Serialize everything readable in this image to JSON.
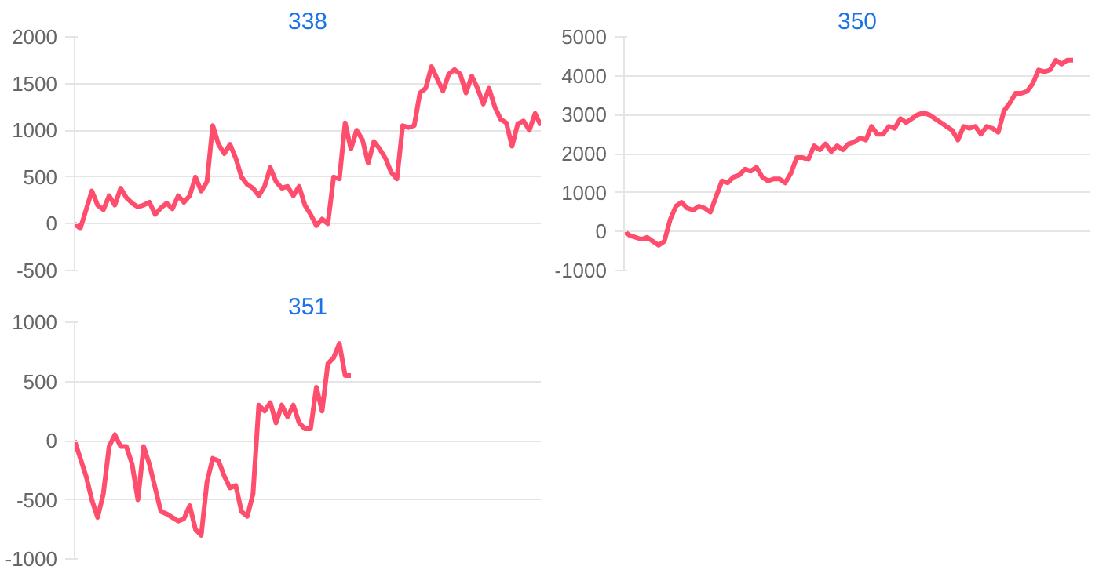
{
  "chart_data": [
    {
      "type": "line",
      "title": "338",
      "categories": [
        null,
        null,
        null,
        null,
        null,
        null,
        null,
        null,
        null,
        null,
        null,
        null,
        null,
        null,
        null,
        null,
        null,
        null,
        null,
        null,
        null,
        null,
        null,
        null,
        null,
        null,
        null,
        null,
        null,
        null,
        null,
        null,
        null,
        null,
        null,
        null,
        null,
        null,
        null,
        null,
        null,
        null,
        null,
        null,
        null,
        null,
        null,
        null,
        null,
        null,
        null,
        null,
        null,
        null,
        null,
        null,
        null,
        null,
        null,
        null,
        null,
        null,
        null,
        null,
        null,
        null,
        null,
        null,
        null,
        null,
        null,
        null,
        null,
        null,
        null,
        null,
        null,
        null,
        null,
        null,
        null,
        null
      ],
      "series": [
        {
          "color": "#ff4d6d",
          "values": [
            0,
            -50,
            150,
            350,
            200,
            150,
            300,
            200,
            380,
            280,
            220,
            180,
            200,
            230,
            100,
            170,
            220,
            160,
            300,
            230,
            300,
            500,
            350,
            450,
            1050,
            850,
            750,
            850,
            700,
            500,
            420,
            380,
            300,
            400,
            600,
            450,
            380,
            400,
            300,
            400,
            200,
            100,
            -20,
            50,
            0,
            500,
            480,
            1080,
            800,
            1000,
            900,
            650,
            880,
            800,
            700,
            550,
            480,
            1050,
            1030,
            1050,
            1400,
            1450,
            1680,
            1550,
            1420,
            1600,
            1650,
            1600,
            1400,
            1580,
            1450,
            1280,
            1450,
            1250,
            1120,
            1080,
            830,
            1070,
            1100,
            1000,
            1180,
            1050
          ]
        }
      ],
      "ylim": [
        -500,
        2000
      ],
      "yticks": [
        -500,
        0,
        500,
        1000,
        1500,
        2000
      ],
      "grid": "y",
      "tick_labels": "y",
      "marker": "none",
      "line_style": "solid"
    },
    {
      "type": "line",
      "title": "350",
      "categories": [
        null,
        null,
        null,
        null,
        null,
        null,
        null,
        null,
        null,
        null,
        null,
        null,
        null,
        null,
        null,
        null,
        null,
        null,
        null,
        null,
        null,
        null,
        null,
        null,
        null,
        null,
        null,
        null,
        null,
        null,
        null,
        null,
        null,
        null,
        null,
        null,
        null,
        null,
        null,
        null,
        null,
        null,
        null,
        null,
        null,
        null,
        null,
        null,
        null,
        null,
        null,
        null,
        null,
        null,
        null,
        null,
        null,
        null,
        null,
        null,
        null,
        null,
        null,
        null,
        null,
        null,
        null,
        null,
        null,
        null,
        null,
        null,
        null,
        null,
        null,
        null,
        null,
        null,
        null,
        null,
        null,
        null
      ],
      "series": [
        {
          "color": "#ff4d6d",
          "values": [
            0,
            -100,
            -150,
            -200,
            -150,
            -250,
            -350,
            -250,
            300,
            650,
            750,
            600,
            550,
            650,
            600,
            500,
            900,
            1300,
            1250,
            1400,
            1450,
            1600,
            1550,
            1650,
            1400,
            1300,
            1350,
            1350,
            1250,
            1500,
            1900,
            1900,
            1850,
            2200,
            2100,
            2250,
            2050,
            2200,
            2100,
            2250,
            2300,
            2400,
            2350,
            2700,
            2500,
            2500,
            2700,
            2650,
            2900,
            2800,
            2900,
            3000,
            3050,
            3000,
            2900,
            2800,
            2700,
            2600,
            2350,
            2700,
            2650,
            2700,
            2500,
            2700,
            2650,
            2550,
            3100,
            3300,
            3550,
            3550,
            3600,
            3800,
            4150,
            4100,
            4150,
            4400,
            4300,
            4400,
            4400,
            null,
            null,
            null
          ]
        }
      ],
      "ylim": [
        -1000,
        5000
      ],
      "yticks": [
        -1000,
        0,
        1000,
        2000,
        3000,
        4000,
        5000
      ],
      "grid": "y",
      "tick_labels": "y",
      "marker": "none",
      "line_style": "solid"
    },
    {
      "type": "line",
      "title": "351",
      "categories": [
        null,
        null,
        null,
        null,
        null,
        null,
        null,
        null,
        null,
        null,
        null,
        null,
        null,
        null,
        null,
        null,
        null,
        null,
        null,
        null,
        null,
        null,
        null,
        null,
        null,
        null,
        null,
        null,
        null,
        null,
        null,
        null,
        null,
        null,
        null,
        null,
        null,
        null,
        null,
        null,
        null,
        null,
        null,
        null,
        null,
        null,
        null,
        null,
        null,
        null,
        null,
        null,
        null,
        null,
        null,
        null,
        null,
        null,
        null,
        null,
        null,
        null,
        null,
        null,
        null,
        null,
        null,
        null,
        null,
        null,
        null,
        null,
        null,
        null,
        null,
        null,
        null,
        null,
        null,
        null,
        null,
        null
      ],
      "series": [
        {
          "color": "#ff4d6d",
          "values": [
            0,
            -150,
            -300,
            -500,
            -650,
            -450,
            -50,
            50,
            -50,
            -50,
            -200,
            -500,
            -50,
            -200,
            -400,
            -600,
            -620,
            -650,
            -680,
            -660,
            -550,
            -750,
            -800,
            -350,
            -150,
            -170,
            -300,
            -400,
            -380,
            -600,
            -640,
            -450,
            300,
            250,
            320,
            150,
            300,
            200,
            300,
            150,
            100,
            100,
            450,
            250,
            650,
            700,
            820,
            550,
            550,
            null,
            null,
            null,
            null,
            null,
            null,
            null,
            null,
            null,
            null,
            null,
            null,
            null,
            null,
            null,
            null,
            null,
            null,
            null,
            null,
            null,
            null,
            null,
            null,
            null,
            null,
            null,
            null,
            null,
            null,
            null,
            null,
            null
          ]
        }
      ],
      "ylim": [
        -1000,
        1000
      ],
      "yticks": [
        -1000,
        -500,
        0,
        500,
        1000
      ],
      "grid": "y",
      "tick_labels": "y",
      "marker": "none",
      "line_style": "solid"
    }
  ]
}
